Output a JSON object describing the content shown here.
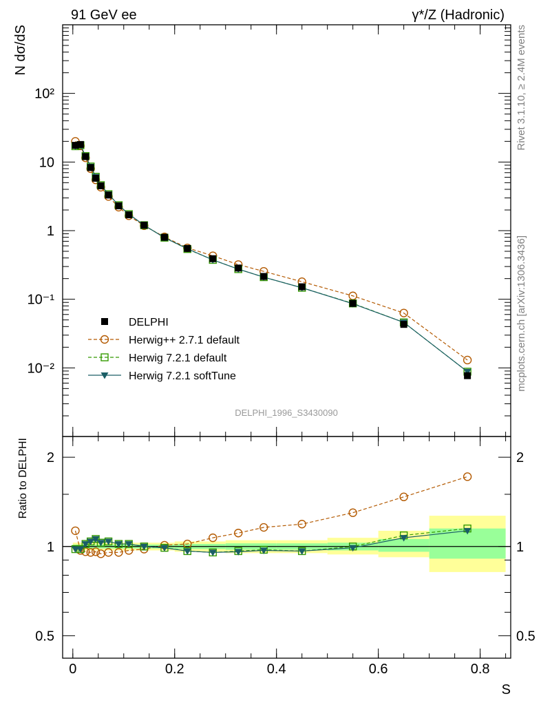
{
  "header": {
    "left": "91 GeV ee",
    "right": "γ*/Z (Hadronic)"
  },
  "side_notes": {
    "rivet": "Rivet 3.1.10, ≥ 2.4M events",
    "source": "mcplots.cern.ch [arXiv:1306.3436]"
  },
  "analysis_tag": "DELPHI_1996_S3430090",
  "colors": {
    "data": "#000000",
    "herwigpp": "#b35900",
    "herwig_default": "#339900",
    "herwig_soft": "#1a5e66",
    "band_outer": "#ffff99",
    "band_inner": "#99ff99"
  },
  "chart_data": {
    "type": "line",
    "xlabel": "S",
    "ylabel": "N dσ/dS",
    "ratio_ylabel": "Ratio to DELPHI",
    "xlim": [
      -0.02,
      0.86
    ],
    "ylim": [
      0.001,
      1000
    ],
    "yscale": "log",
    "ratio_ylim": [
      0.42,
      2.35
    ],
    "ratio_yscale": "log",
    "x_ticks": [
      "0",
      "0.2",
      "0.4",
      "0.6",
      "0.8"
    ],
    "y_ticks": [
      "10⁻²",
      "10⁻¹",
      "1",
      "10",
      "10²"
    ],
    "ratio_ticks": [
      "0.5",
      "1",
      "2"
    ],
    "legend_position": "bottom-left",
    "x": [
      0.005,
      0.015,
      0.025,
      0.035,
      0.045,
      0.055,
      0.07,
      0.09,
      0.11,
      0.14,
      0.18,
      0.225,
      0.275,
      0.325,
      0.375,
      0.45,
      0.55,
      0.65,
      0.775
    ],
    "ratio_band_bins": [
      {
        "x0": 0.0,
        "x1": 0.2,
        "outer": [
          0.97,
          1.03
        ],
        "inner": [
          0.985,
          1.015
        ]
      },
      {
        "x0": 0.2,
        "x1": 0.3,
        "outer": [
          0.96,
          1.04
        ],
        "inner": [
          0.98,
          1.02
        ]
      },
      {
        "x0": 0.3,
        "x1": 0.4,
        "outer": [
          0.95,
          1.05
        ],
        "inner": [
          0.975,
          1.025
        ]
      },
      {
        "x0": 0.4,
        "x1": 0.5,
        "outer": [
          0.95,
          1.05
        ],
        "inner": [
          0.975,
          1.025
        ]
      },
      {
        "x0": 0.5,
        "x1": 0.6,
        "outer": [
          0.94,
          1.07
        ],
        "inner": [
          0.97,
          1.03
        ]
      },
      {
        "x0": 0.6,
        "x1": 0.7,
        "outer": [
          0.92,
          1.13
        ],
        "inner": [
          0.96,
          1.06
        ]
      },
      {
        "x0": 0.7,
        "x1": 0.85,
        "outer": [
          0.82,
          1.27
        ],
        "inner": [
          0.91,
          1.15
        ]
      }
    ],
    "series": [
      {
        "name": "DELPHI",
        "style": "data",
        "values": [
          17.5,
          18.0,
          12.0,
          8.3,
          5.8,
          4.5,
          3.3,
          2.3,
          1.7,
          1.2,
          0.8,
          0.55,
          0.39,
          0.285,
          0.215,
          0.152,
          0.087,
          0.043,
          0.0077
        ],
        "ratio": [
          1,
          1,
          1,
          1,
          1,
          1,
          1,
          1,
          1,
          1,
          1,
          1,
          1,
          1,
          1,
          1,
          1,
          1,
          1
        ]
      },
      {
        "name": "Herwig++ 2.7.1 default",
        "style": "circle-dashed",
        "values": [
          20.0,
          17.2,
          11.5,
          8.0,
          5.5,
          4.3,
          3.15,
          2.2,
          1.65,
          1.18,
          0.81,
          0.56,
          0.43,
          0.32,
          0.255,
          0.18,
          0.112,
          0.063,
          0.013
        ],
        "ratio": [
          1.13,
          0.97,
          0.96,
          0.955,
          0.96,
          0.945,
          0.955,
          0.955,
          0.97,
          0.98,
          1.01,
          1.02,
          1.07,
          1.11,
          1.16,
          1.19,
          1.3,
          1.47,
          1.72
        ]
      },
      {
        "name": "Herwig 7.2.1 default",
        "style": "square-dashed",
        "values": [
          17.0,
          17.6,
          12.2,
          8.6,
          6.1,
          4.6,
          3.4,
          2.35,
          1.74,
          1.2,
          0.79,
          0.54,
          0.375,
          0.275,
          0.21,
          0.147,
          0.087,
          0.046,
          0.0088
        ],
        "ratio": [
          0.98,
          0.98,
          1.02,
          1.04,
          1.06,
          1.03,
          1.04,
          1.02,
          1.02,
          1.0,
          0.99,
          0.965,
          0.955,
          0.965,
          0.975,
          0.965,
          1.0,
          1.09,
          1.15
        ]
      },
      {
        "name": "Herwig 7.2.1 softTune",
        "style": "triangle-solid",
        "values": [
          17.0,
          17.6,
          12.2,
          8.6,
          6.1,
          4.6,
          3.4,
          2.35,
          1.74,
          1.2,
          0.79,
          0.545,
          0.375,
          0.275,
          0.21,
          0.147,
          0.086,
          0.046,
          0.0088
        ],
        "ratio": [
          0.98,
          0.98,
          1.02,
          1.04,
          1.06,
          1.03,
          1.04,
          1.02,
          1.02,
          1.0,
          0.99,
          0.965,
          0.955,
          0.96,
          0.97,
          0.965,
          0.99,
          1.07,
          1.13
        ]
      }
    ]
  }
}
